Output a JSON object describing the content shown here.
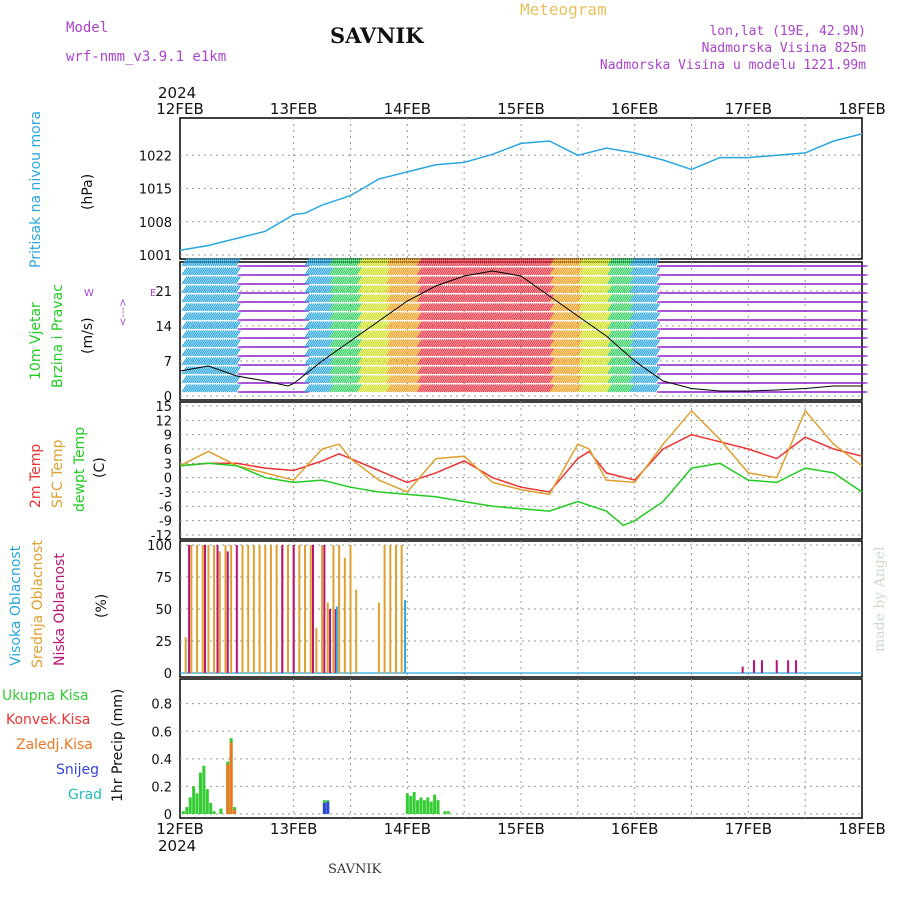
{
  "header": {
    "model_label": "Model",
    "model_name": "wrf-nmm_v3.9.1  e1km",
    "station": "SAVNIK",
    "meteogram": "Meteogram",
    "lonlat": "lon,lat (19E, 42.9N)",
    "elev": "Nadmorska Visina 825m",
    "elev_model": "Nadmorska Visina u modelu 1221.99m",
    "year_top": "2024",
    "year_bottom": "2024",
    "footer_station": "SAVNIK",
    "made_by": "made by Angel"
  },
  "colors": {
    "pressure": "#2aa6e0",
    "temp2m": "#ee3333",
    "sfc": "#e0a030",
    "dew": "#22cc22",
    "high_cloud": "#2aa6e0",
    "mid_cloud": "#e0a030",
    "low_cloud": "#bb1177",
    "total_precip": "#33cc33",
    "conv_precip": "#ee3333",
    "frozen_precip": "#ee7722",
    "snow": "#3344dd",
    "hail": "#22bbbb"
  },
  "chart_data": [
    {
      "type": "line",
      "name": "pressure",
      "x_ticks": [
        "12FEB",
        "13FEB",
        "14FEB",
        "15FEB",
        "16FEB",
        "17FEB",
        "18FEB"
      ],
      "ylabel_lines": [
        "Pritisak na nivou mora",
        "(hPa)"
      ],
      "yticks": [
        1001,
        1008,
        1015,
        1022
      ],
      "ylim": [
        1001,
        1029
      ],
      "grid": true,
      "series": [
        {
          "x": [
            0,
            0.25,
            0.5,
            0.75,
            1,
            1.1,
            1.25,
            1.5,
            1.75,
            2,
            2.25,
            2.5,
            2.75,
            3,
            3.25,
            3.5,
            3.75,
            4,
            4.25,
            4.5,
            4.75,
            5,
            5.25,
            5.5,
            5.75,
            6
          ],
          "y": [
            1002,
            1003,
            1004.5,
            1006,
            1009.5,
            1009.8,
            1011.5,
            1013.5,
            1017,
            1018.5,
            1020,
            1020.5,
            1022.2,
            1024.5,
            1025,
            1022,
            1023.5,
            1022.5,
            1021,
            1019,
            1021.5,
            1021.5,
            1022,
            1022.5,
            1025,
            1026.5
          ]
        }
      ]
    },
    {
      "type": "line",
      "name": "wind",
      "ylabel_lines": [
        "10m Vjetar",
        "Brzina i Pravac",
        "(m/s)"
      ],
      "direction_labels": [
        "W",
        "<-",
        "-",
        "->",
        "E"
      ],
      "yticks": [
        0,
        7,
        14,
        21
      ],
      "ylim": [
        0,
        26
      ],
      "grid": true,
      "series": [
        {
          "x": [
            0,
            0.25,
            0.5,
            0.75,
            0.95,
            1,
            1.25,
            1.5,
            1.75,
            2,
            2.25,
            2.5,
            2.75,
            3,
            3.25,
            3.5,
            3.75,
            4,
            4.25,
            4.5,
            4.75,
            5,
            5.25,
            5.5,
            5.75,
            6
          ],
          "y": [
            5,
            6,
            4,
            3,
            2,
            2.5,
            7,
            11,
            15,
            19,
            22,
            24,
            25,
            24,
            20,
            16,
            12,
            7,
            3,
            1.5,
            1,
            1,
            1.2,
            1.5,
            2,
            2
          ]
        }
      ]
    },
    {
      "type": "line",
      "name": "temperature",
      "ylabel_lines": [
        "2m Temp",
        "SFC Temp",
        "dewpt Temp",
        "(C)"
      ],
      "yticks": [
        -12,
        -9,
        -6,
        -3,
        0,
        3,
        6,
        9,
        12,
        15
      ],
      "ylim": [
        -12,
        15
      ],
      "grid": true,
      "series": [
        {
          "name": "2m Temp",
          "x": [
            0,
            0.25,
            0.5,
            0.75,
            1,
            1.25,
            1.4,
            1.5,
            1.75,
            2,
            2.25,
            2.5,
            2.75,
            3,
            3.25,
            3.5,
            3.6,
            3.75,
            4,
            4.25,
            4.5,
            4.75,
            5,
            5.25,
            5.5,
            5.75,
            6
          ],
          "y": [
            2.5,
            3,
            3,
            2,
            1.5,
            3.5,
            5,
            4,
            1.5,
            -1,
            1,
            3.5,
            0,
            -2,
            -3,
            4,
            5.5,
            1,
            -0.5,
            6,
            9,
            7.5,
            6,
            4,
            8.5,
            6,
            4.5
          ]
        },
        {
          "name": "SFC Temp",
          "x": [
            0,
            0.25,
            0.5,
            0.75,
            1,
            1.25,
            1.4,
            1.5,
            1.75,
            2,
            2.25,
            2.5,
            2.75,
            3,
            3.25,
            3.5,
            3.6,
            3.75,
            4,
            4.25,
            4.5,
            4.75,
            5,
            5.25,
            5.5,
            5.75,
            6
          ],
          "y": [
            2.5,
            5.5,
            2.5,
            1,
            -0.5,
            6,
            7,
            4,
            -0.5,
            -3,
            4,
            4.5,
            -1,
            -2.5,
            -3.5,
            7,
            6,
            -0.5,
            -1,
            7,
            14,
            8,
            1,
            0,
            14,
            7,
            2.5
          ]
        },
        {
          "name": "dewpt Temp",
          "x": [
            0,
            0.25,
            0.5,
            0.75,
            1,
            1.25,
            1.5,
            1.75,
            2,
            2.25,
            2.5,
            2.75,
            3,
            3.25,
            3.5,
            3.75,
            3.9,
            4,
            4.25,
            4.5,
            4.75,
            5,
            5.25,
            5.5,
            5.75,
            6
          ],
          "y": [
            2.5,
            3,
            2.5,
            0,
            -1,
            -0.5,
            -2,
            -3,
            -3.5,
            -4,
            -5,
            -6,
            -6.5,
            -7,
            -5,
            -7,
            -10,
            -9,
            -5,
            2,
            3,
            -0.5,
            -1,
            2,
            1,
            -3
          ]
        }
      ]
    },
    {
      "type": "bar",
      "name": "cloud_cover",
      "ylabel_lines": [
        "Visoka Oblacnost",
        "Srednja Oblacnost",
        "Niska Oblacnost",
        "(%)"
      ],
      "yticks": [
        0,
        25,
        50,
        75,
        100
      ],
      "ylim": [
        0,
        100
      ],
      "grid": true,
      "series": [
        {
          "name": "Srednja Oblacnost",
          "x": [
            0.05,
            0.1,
            0.15,
            0.2,
            0.25,
            0.3,
            0.35,
            0.4,
            0.45,
            0.55,
            0.6,
            0.65,
            0.7,
            0.75,
            0.8,
            0.85,
            0.9,
            0.95,
            1.0,
            1.05,
            1.1,
            1.15,
            1.2,
            1.25,
            1.3,
            1.35,
            1.4,
            1.45,
            1.5,
            1.55,
            1.75,
            1.8,
            1.85,
            1.9,
            1.95
          ],
          "y": [
            28,
            100,
            100,
            100,
            100,
            100,
            95,
            100,
            100,
            100,
            100,
            100,
            100,
            100,
            100,
            100,
            100,
            100,
            100,
            100,
            100,
            100,
            35,
            100,
            55,
            100,
            100,
            90,
            100,
            65,
            55,
            100,
            100,
            100,
            100
          ]
        },
        {
          "name": "Niska Oblacnost",
          "x": [
            0.08,
            0.22,
            0.33,
            0.42,
            0.5,
            0.9,
            1.0,
            1.17,
            1.27,
            1.32,
            1.37,
            4.95,
            5.05,
            5.12,
            5.25,
            5.35,
            5.42
          ],
          "y": [
            100,
            100,
            100,
            95,
            100,
            100,
            100,
            100,
            100,
            50,
            50,
            5,
            10,
            10,
            10,
            10,
            10
          ]
        },
        {
          "name": "Visoka Oblacnost",
          "x": [
            1.38,
            1.98
          ],
          "y": [
            52,
            57
          ]
        }
      ]
    },
    {
      "type": "bar",
      "name": "precipitation",
      "ylabel_lines": [
        "Ukupna Kisa",
        "Konvek.Kisa",
        "Zaledj.Kisa",
        "Snijeg",
        "Grad",
        "1hr Precip (mm)"
      ],
      "yticks": [
        0,
        0.2,
        0.4,
        0.6,
        0.8
      ],
      "ylim": [
        0,
        0.95
      ],
      "grid": true,
      "series": [
        {
          "name": "Ukupna Kisa",
          "x": [
            0.03,
            0.06,
            0.09,
            0.12,
            0.15,
            0.18,
            0.21,
            0.24,
            0.27,
            0.3,
            0.36,
            0.42,
            0.45,
            0.48,
            1.27,
            1.3,
            2.0,
            2.03,
            2.06,
            2.09,
            2.12,
            2.15,
            2.18,
            2.21,
            2.24,
            2.27,
            2.33,
            2.36
          ],
          "y": [
            0.02,
            0.05,
            0.12,
            0.2,
            0.15,
            0.3,
            0.35,
            0.18,
            0.08,
            0.02,
            0.04,
            0.38,
            0.55,
            0.05,
            0.1,
            0.1,
            0.15,
            0.13,
            0.16,
            0.1,
            0.12,
            0.1,
            0.12,
            0.09,
            0.14,
            0.1,
            0.02,
            0.02
          ]
        },
        {
          "name": "Zaledj.Kisa",
          "x": [
            0.42,
            0.45,
            0.48
          ],
          "y": [
            0.36,
            0.52,
            0.03
          ]
        },
        {
          "name": "Snijeg",
          "x": [
            1.27,
            1.3
          ],
          "y": [
            0.08,
            0.09
          ]
        }
      ]
    }
  ]
}
